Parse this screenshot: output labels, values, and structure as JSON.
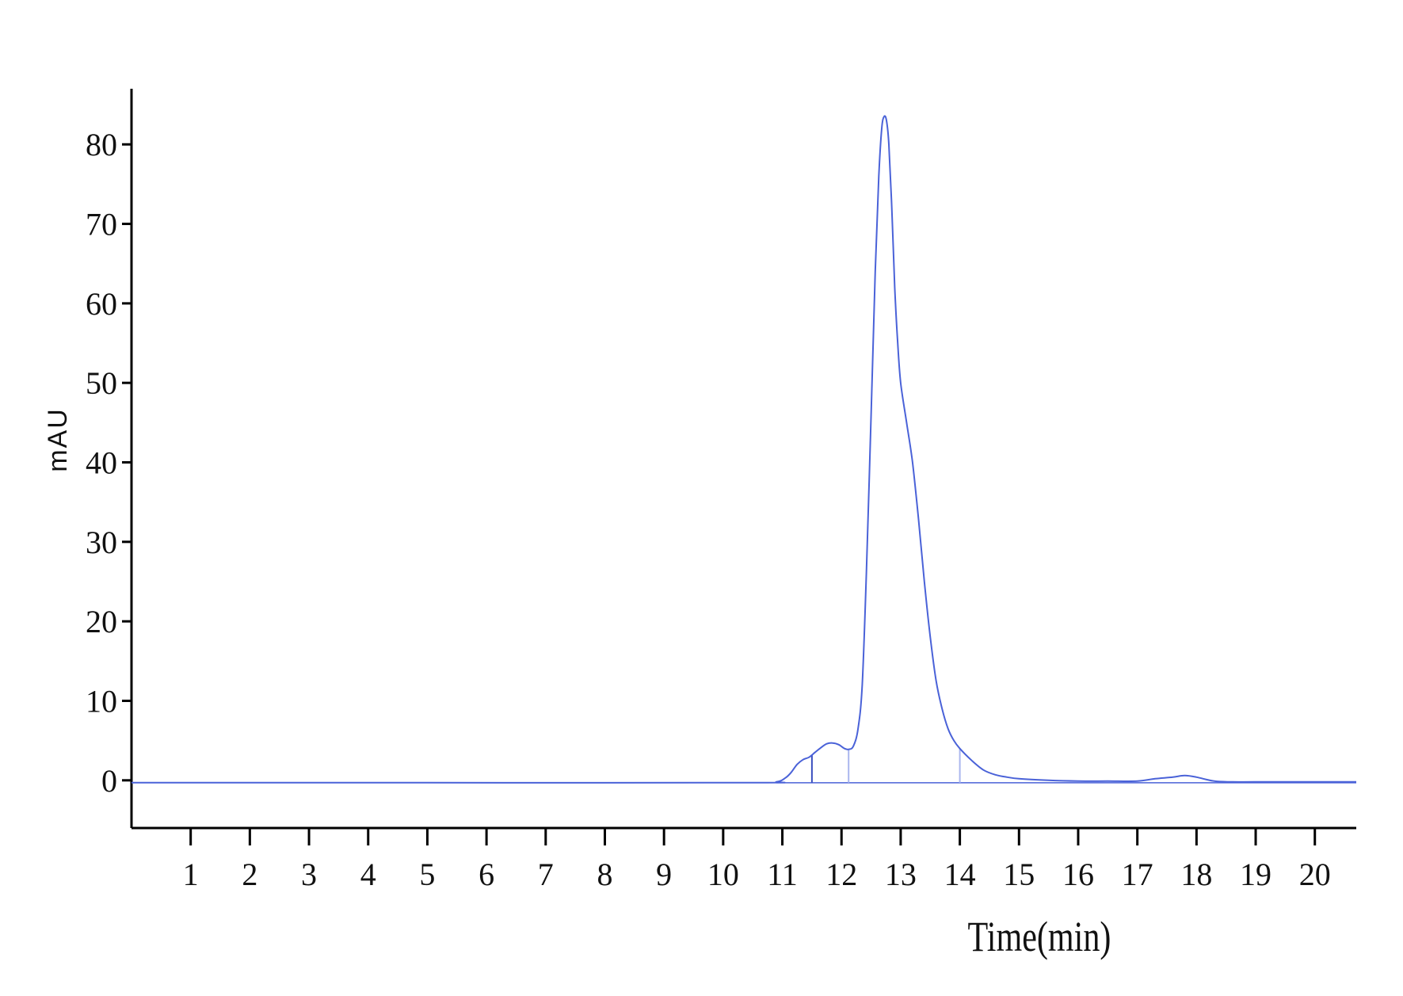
{
  "chart_data": {
    "type": "line",
    "title": "",
    "xlabel": "Time(min)",
    "ylabel": "mAU",
    "xlim": [
      0,
      20.7
    ],
    "ylim": [
      -6,
      87
    ],
    "x_ticks": [
      1,
      2,
      3,
      4,
      5,
      6,
      7,
      8,
      9,
      10,
      11,
      12,
      13,
      14,
      15,
      16,
      17,
      18,
      19,
      20
    ],
    "y_ticks": [
      0,
      10,
      20,
      30,
      40,
      50,
      60,
      70,
      80
    ],
    "grid": false,
    "line_color": "#4a62d8",
    "marker_color": "#aab6ee",
    "series": [
      {
        "x": [
          0.0,
          5.0,
          10.5,
          10.9,
          11.05,
          11.15,
          11.25,
          11.35,
          11.45,
          11.55,
          11.65,
          11.75,
          11.85,
          11.95,
          12.05,
          12.12,
          12.2,
          12.28,
          12.35,
          12.42,
          12.5,
          12.57,
          12.63,
          12.68,
          12.72,
          12.76,
          12.8,
          12.85,
          12.9,
          12.95,
          13.0,
          13.1,
          13.2,
          13.3,
          13.4,
          13.5,
          13.6,
          13.7,
          13.8,
          13.9,
          14.0,
          14.2,
          14.4,
          14.6,
          14.8,
          15.0,
          15.5,
          16.0,
          16.5,
          17.0,
          17.3,
          17.6,
          17.8,
          18.0,
          18.3,
          18.6,
          19.0,
          20.0,
          20.7
        ],
        "y": [
          -0.3,
          -0.3,
          -0.3,
          -0.2,
          0.3,
          1.0,
          2.0,
          2.6,
          2.9,
          3.5,
          4.1,
          4.6,
          4.7,
          4.5,
          4.0,
          3.9,
          4.3,
          6.5,
          12.0,
          26.0,
          46.0,
          64.0,
          76.0,
          82.0,
          83.5,
          83.0,
          80.0,
          72.0,
          62.0,
          55.0,
          50.0,
          45.0,
          40.0,
          33.0,
          25.0,
          18.0,
          12.5,
          9.0,
          6.5,
          5.0,
          4.0,
          2.5,
          1.3,
          0.7,
          0.4,
          0.2,
          0.0,
          -0.1,
          -0.1,
          -0.1,
          0.2,
          0.4,
          0.6,
          0.4,
          -0.1,
          -0.2,
          -0.2,
          -0.2,
          -0.2
        ]
      }
    ],
    "peak_markers_x": [
      11.5,
      12.12,
      14.0
    ]
  }
}
